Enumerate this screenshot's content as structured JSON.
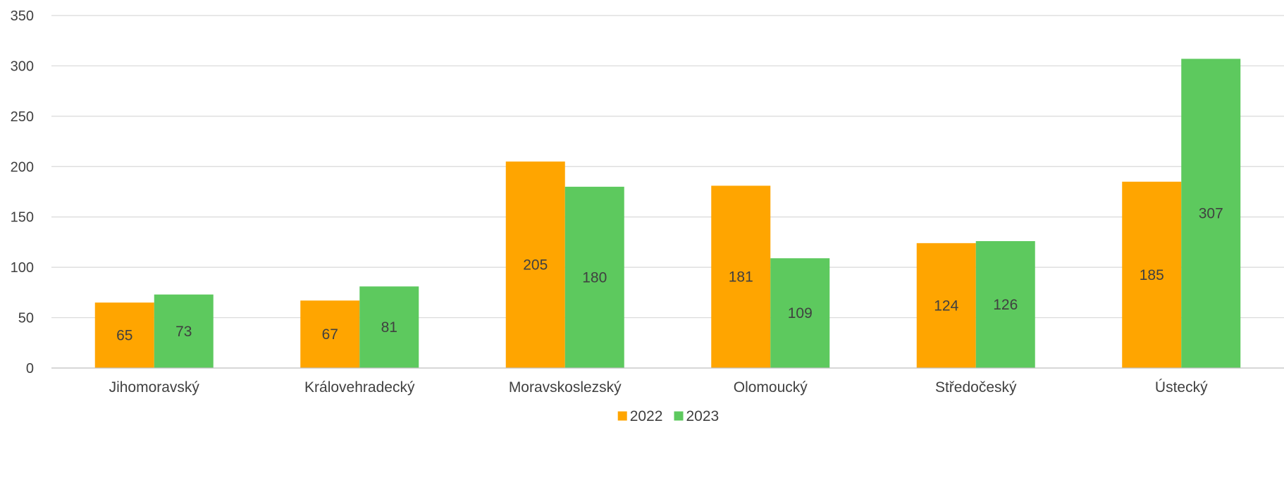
{
  "chart_data": {
    "type": "bar",
    "title": "",
    "xlabel": "",
    "ylabel": "",
    "categories": [
      "Jihomoravský",
      "Královehradecký",
      "Moravskoslezský",
      "Olomoucký",
      "Středočeský",
      "Ústecký"
    ],
    "series": [
      {
        "name": "2022",
        "color": "#FFA500",
        "values": [
          65,
          67,
          205,
          181,
          124,
          185
        ]
      },
      {
        "name": "2023",
        "color": "#5DC95E",
        "values": [
          73,
          81,
          180,
          109,
          126,
          307
        ]
      }
    ],
    "ylim": [
      0,
      350
    ],
    "yticks": [
      0,
      50,
      100,
      150,
      200,
      250,
      300,
      350
    ],
    "grid": true,
    "legend_position": "bottom",
    "data_labels": true
  }
}
